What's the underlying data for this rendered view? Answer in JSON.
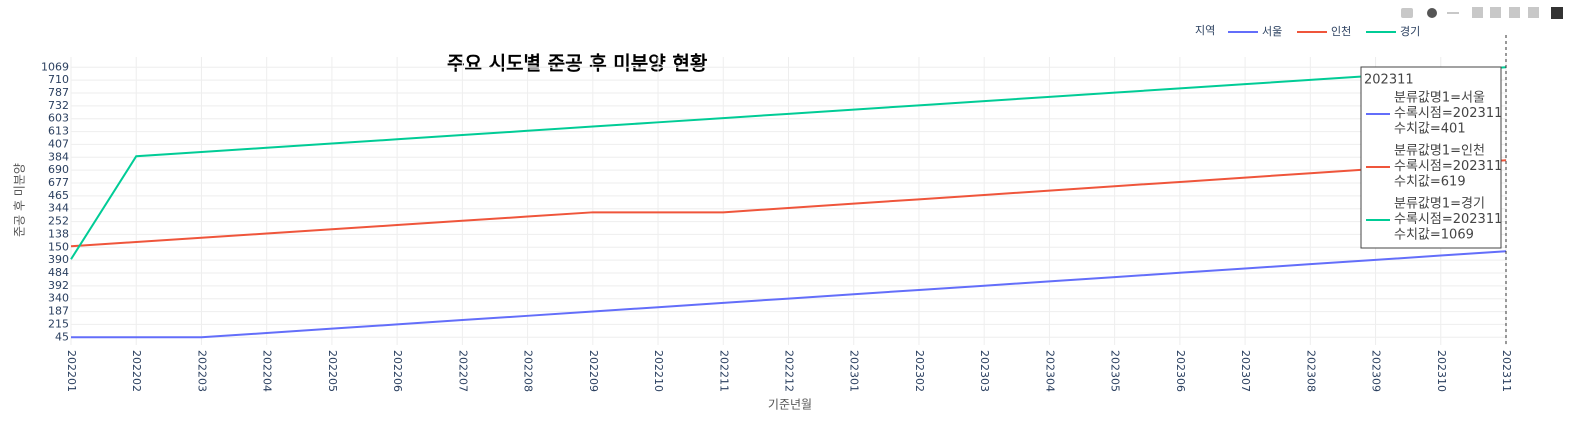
{
  "chart_data": {
    "type": "line",
    "title": "주요 시도별 준공 후 미분양 현황",
    "xlabel": "기준년월",
    "ylabel": "준공 후 미분양",
    "legend_title": "지역",
    "legend_position": "top-right",
    "grid": true,
    "categories": [
      "202201",
      "202202",
      "202203",
      "202204",
      "202205",
      "202206",
      "202207",
      "202208",
      "202209",
      "202210",
      "202211",
      "202212",
      "202301",
      "202302",
      "202303",
      "202304",
      "202305",
      "202306",
      "202307",
      "202308",
      "202309",
      "202310",
      "202311"
    ],
    "ylim": [
      -0.6,
      21.8
    ],
    "yticks": [
      {
        "value": 0,
        "label": "45"
      },
      {
        "value": 1,
        "label": "215"
      },
      {
        "value": 2,
        "label": "187"
      },
      {
        "value": 3,
        "label": "340"
      },
      {
        "value": 4,
        "label": "392"
      },
      {
        "value": 5,
        "label": "484"
      },
      {
        "value": 6,
        "label": "390"
      },
      {
        "value": 7,
        "label": "150"
      },
      {
        "value": 8,
        "label": "138"
      },
      {
        "value": 9,
        "label": "252"
      },
      {
        "value": 10,
        "label": "344"
      },
      {
        "value": 11,
        "label": "465"
      },
      {
        "value": 12,
        "label": "677"
      },
      {
        "value": 13,
        "label": "690"
      },
      {
        "value": 14,
        "label": "384"
      },
      {
        "value": 15,
        "label": "407"
      },
      {
        "value": 16,
        "label": "613"
      },
      {
        "value": 17,
        "label": "603"
      },
      {
        "value": 18,
        "label": "732"
      },
      {
        "value": 19,
        "label": "787"
      },
      {
        "value": 20,
        "label": "710"
      },
      {
        "value": 21,
        "label": "1069"
      }
    ],
    "series": [
      {
        "name": "서울",
        "color": "#636efa",
        "values": [
          0,
          0,
          0,
          0.33,
          0.67,
          1.0,
          1.34,
          1.67,
          2.01,
          2.34,
          2.68,
          3.01,
          3.35,
          3.68,
          4.01,
          4.35,
          4.68,
          5.02,
          5.35,
          5.69,
          6.02,
          6.36,
          6.69
        ]
      },
      {
        "name": "인천",
        "color": "#ef553b",
        "values": [
          7.08,
          7.41,
          7.74,
          8.07,
          8.4,
          8.73,
          9.06,
          9.39,
          9.72,
          9.72,
          9.72,
          10.06,
          10.4,
          10.73,
          11.07,
          11.41,
          11.75,
          12.08,
          12.42,
          12.76,
          13.1,
          13.43,
          13.77
        ]
      },
      {
        "name": "경기",
        "color": "#00cc96",
        "values": [
          6.07,
          14.08,
          14.41,
          14.74,
          15.07,
          15.4,
          15.73,
          16.06,
          16.39,
          16.72,
          17.05,
          17.38,
          17.71,
          18.04,
          18.37,
          18.7,
          19.03,
          19.36,
          19.69,
          20.02,
          20.35,
          20.68,
          21.0
        ]
      }
    ],
    "hover": {
      "title": "202311",
      "items": [
        [
          "분류값명1=서울",
          "수록시점=202311",
          "수치값=401"
        ],
        [
          "분류값명1=인천",
          "수록시점=202311",
          "수치값=619"
        ],
        [
          "분류값명1=경기",
          "수록시점=202311",
          "수치값=1069"
        ]
      ]
    }
  }
}
